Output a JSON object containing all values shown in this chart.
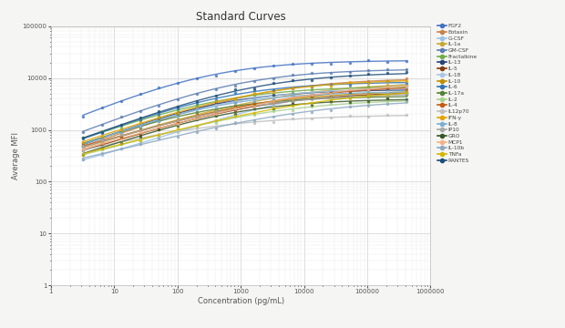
{
  "title": "Standard Curves",
  "xlabel": "Concentration (pg/mL)",
  "ylabel": "Average MFI",
  "x_min": 1,
  "x_max": 1000000,
  "y_min": 1,
  "y_max": 100000,
  "background_color": "#f5f5f3",
  "plot_bg_color": "#ffffff",
  "series": [
    {
      "name": "FGF2",
      "color": "#4472c4",
      "lw": 1.0
    },
    {
      "name": "Eotaxin",
      "color": "#c8824a",
      "lw": 1.0
    },
    {
      "name": "G-CSF",
      "color": "#9dc3e6",
      "lw": 1.0
    },
    {
      "name": "IL-1a",
      "color": "#c8a832",
      "lw": 1.0
    },
    {
      "name": "GM-CSF",
      "color": "#5b7db1",
      "lw": 1.0
    },
    {
      "name": "Fractalkine",
      "color": "#70ad47",
      "lw": 1.0
    },
    {
      "name": "IL-13",
      "color": "#264478",
      "lw": 1.0
    },
    {
      "name": "IL-5",
      "color": "#843c0c",
      "lw": 1.0
    },
    {
      "name": "IL-18",
      "color": "#a9c6e3",
      "lw": 1.0
    },
    {
      "name": "IL-10",
      "color": "#bf8f00",
      "lw": 1.0
    },
    {
      "name": "IL-6",
      "color": "#2e75b6",
      "lw": 1.0
    },
    {
      "name": "IL-17a",
      "color": "#548235",
      "lw": 1.0
    },
    {
      "name": "IL-2",
      "color": "#a9d18e",
      "lw": 1.0
    },
    {
      "name": "IL-4",
      "color": "#c55a11",
      "lw": 1.0
    },
    {
      "name": "IL12p70",
      "color": "#bfbfbf",
      "lw": 1.0
    },
    {
      "name": "IFN-y",
      "color": "#e4a400",
      "lw": 1.0
    },
    {
      "name": "IL-8",
      "color": "#7bafd4",
      "lw": 1.0
    },
    {
      "name": "IP10",
      "color": "#a9a9a9",
      "lw": 1.0
    },
    {
      "name": "GRO",
      "color": "#375623",
      "lw": 1.0
    },
    {
      "name": "MCP1",
      "color": "#f4b183",
      "lw": 1.0
    },
    {
      "name": "IL-10b",
      "color": "#8ea9c1",
      "lw": 1.0
    },
    {
      "name": "TNFa",
      "color": "#d4b800",
      "lw": 1.0
    },
    {
      "name": "RANTES",
      "color": "#1f4e79",
      "lw": 1.0
    }
  ],
  "curve_params": [
    [
      300,
      30,
      22000,
      1.2
    ],
    [
      2000,
      45,
      10000,
      1.1
    ],
    [
      20000,
      55,
      9500,
      1.0
    ],
    [
      4000,
      50,
      8500,
      0.95
    ],
    [
      800,
      40,
      15000,
      1.15
    ],
    [
      400,
      55,
      7000,
      1.1
    ],
    [
      350,
      45,
      6000,
      1.2
    ],
    [
      1500,
      50,
      5500,
      1.0
    ],
    [
      600,
      55,
      6500,
      1.1
    ],
    [
      1200,
      50,
      5800,
      1.0
    ],
    [
      500,
      45,
      8500,
      1.15
    ],
    [
      250,
      55,
      4500,
      1.1
    ],
    [
      1800,
      60,
      4000,
      0.95
    ],
    [
      4000,
      55,
      7500,
      0.9
    ],
    [
      150,
      15,
      2000,
      0.85
    ],
    [
      1500,
      55,
      9500,
      1.05
    ],
    [
      350,
      50,
      5500,
      1.15
    ],
    [
      800,
      55,
      5000,
      1.0
    ],
    [
      600,
      50,
      4000,
      1.1
    ],
    [
      8000,
      55,
      8500,
      0.9
    ],
    [
      6000,
      55,
      4000,
      0.85
    ],
    [
      12000,
      50,
      6500,
      0.85
    ],
    [
      1500,
      45,
      13000,
      1.1
    ]
  ]
}
